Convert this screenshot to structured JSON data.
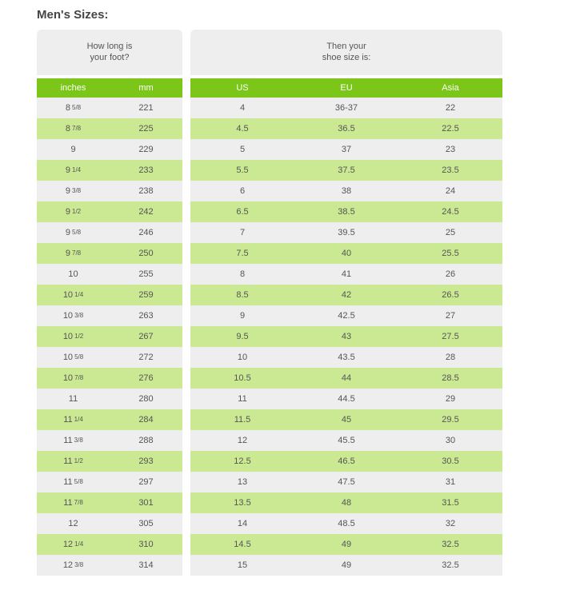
{
  "title": "Men's Sizes:",
  "colors": {
    "header_green": "#7bc618",
    "row_light": "#eeeeee",
    "row_green": "#cae992",
    "text": "#555555",
    "title_text": "#444444",
    "background": "#ffffff"
  },
  "left_table": {
    "heading_line1": "How long is",
    "heading_line2": "your foot?",
    "columns": [
      "inches",
      "mm"
    ],
    "rows": [
      {
        "inches_whole": "8",
        "inches_frac": "5/8",
        "mm": "221"
      },
      {
        "inches_whole": "8",
        "inches_frac": "7/8",
        "mm": "225"
      },
      {
        "inches_whole": "9",
        "inches_frac": "",
        "mm": "229"
      },
      {
        "inches_whole": "9",
        "inches_frac": "1/4",
        "mm": "233"
      },
      {
        "inches_whole": "9",
        "inches_frac": "3/8",
        "mm": "238"
      },
      {
        "inches_whole": "9",
        "inches_frac": "1/2",
        "mm": "242"
      },
      {
        "inches_whole": "9",
        "inches_frac": "5/8",
        "mm": "246"
      },
      {
        "inches_whole": "9",
        "inches_frac": "7/8",
        "mm": "250"
      },
      {
        "inches_whole": "10",
        "inches_frac": "",
        "mm": "255"
      },
      {
        "inches_whole": "10",
        "inches_frac": "1/4",
        "mm": "259"
      },
      {
        "inches_whole": "10",
        "inches_frac": "3/8",
        "mm": "263"
      },
      {
        "inches_whole": "10",
        "inches_frac": "1/2",
        "mm": "267"
      },
      {
        "inches_whole": "10",
        "inches_frac": "5/8",
        "mm": "272"
      },
      {
        "inches_whole": "10",
        "inches_frac": "7/8",
        "mm": "276"
      },
      {
        "inches_whole": "11",
        "inches_frac": "",
        "mm": "280"
      },
      {
        "inches_whole": "11",
        "inches_frac": "1/4",
        "mm": "284"
      },
      {
        "inches_whole": "11",
        "inches_frac": "3/8",
        "mm": "288"
      },
      {
        "inches_whole": "11",
        "inches_frac": "1/2",
        "mm": "293"
      },
      {
        "inches_whole": "11",
        "inches_frac": "5/8",
        "mm": "297"
      },
      {
        "inches_whole": "11",
        "inches_frac": "7/8",
        "mm": "301"
      },
      {
        "inches_whole": "12",
        "inches_frac": "",
        "mm": "305"
      },
      {
        "inches_whole": "12",
        "inches_frac": "1/4",
        "mm": "310"
      },
      {
        "inches_whole": "12",
        "inches_frac": "3/8",
        "mm": "314"
      }
    ]
  },
  "right_table": {
    "heading_line1": "Then your",
    "heading_line2": "shoe size is:",
    "columns": [
      "US",
      "EU",
      "Asia"
    ],
    "rows": [
      {
        "us": "4",
        "eu": "36-37",
        "asia": "22"
      },
      {
        "us": "4.5",
        "eu": "36.5",
        "asia": "22.5"
      },
      {
        "us": "5",
        "eu": "37",
        "asia": "23"
      },
      {
        "us": "5.5",
        "eu": "37.5",
        "asia": "23.5"
      },
      {
        "us": "6",
        "eu": "38",
        "asia": "24"
      },
      {
        "us": "6.5",
        "eu": "38.5",
        "asia": "24.5"
      },
      {
        "us": "7",
        "eu": "39.5",
        "asia": "25"
      },
      {
        "us": "7.5",
        "eu": "40",
        "asia": "25.5"
      },
      {
        "us": "8",
        "eu": "41",
        "asia": "26"
      },
      {
        "us": "8.5",
        "eu": "42",
        "asia": "26.5"
      },
      {
        "us": "9",
        "eu": "42.5",
        "asia": "27"
      },
      {
        "us": "9.5",
        "eu": "43",
        "asia": "27.5"
      },
      {
        "us": "10",
        "eu": "43.5",
        "asia": "28"
      },
      {
        "us": "10.5",
        "eu": "44",
        "asia": "28.5"
      },
      {
        "us": "11",
        "eu": "44.5",
        "asia": "29"
      },
      {
        "us": "11.5",
        "eu": "45",
        "asia": "29.5"
      },
      {
        "us": "12",
        "eu": "45.5",
        "asia": "30"
      },
      {
        "us": "12.5",
        "eu": "46.5",
        "asia": "30.5"
      },
      {
        "us": "13",
        "eu": "47.5",
        "asia": "31"
      },
      {
        "us": "13.5",
        "eu": "48",
        "asia": "31.5"
      },
      {
        "us": "14",
        "eu": "48.5",
        "asia": "32"
      },
      {
        "us": "14.5",
        "eu": "49",
        "asia": "32.5"
      },
      {
        "us": "15",
        "eu": "49",
        "asia": "32.5"
      }
    ]
  }
}
